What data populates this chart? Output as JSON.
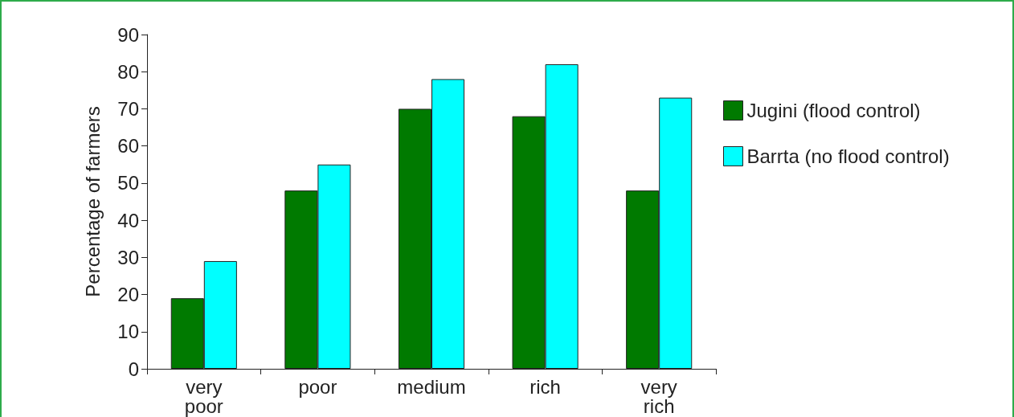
{
  "chart_data": {
    "type": "bar",
    "ylabel": "Percentage of farmers",
    "categories": [
      "very poor",
      "poor",
      "medium",
      "rich",
      "very rich"
    ],
    "series": [
      {
        "name": "Jugini (flood control)",
        "color": "#007a00",
        "values": [
          19,
          48,
          70,
          68,
          48
        ]
      },
      {
        "name": "Barrta (no flood control)",
        "color": "#00ffff",
        "values": [
          29,
          55,
          78,
          82,
          73
        ]
      }
    ],
    "ylim": [
      0,
      90
    ],
    "yticks": [
      0,
      10,
      20,
      30,
      40,
      50,
      60,
      70,
      80,
      90
    ],
    "grid": false,
    "legend": "right"
  }
}
